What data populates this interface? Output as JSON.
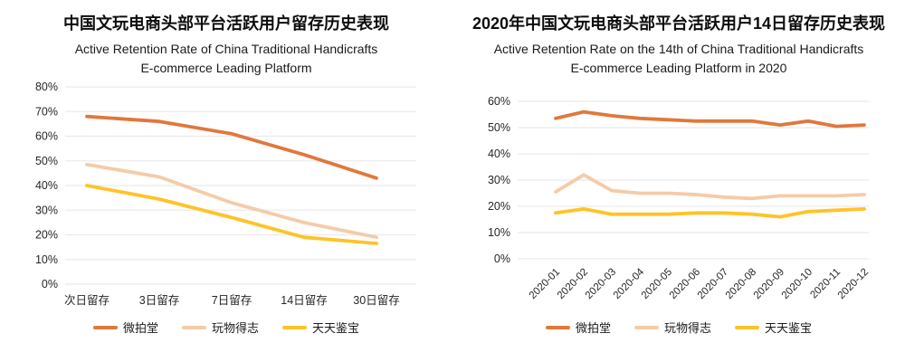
{
  "page": {
    "background": "#ffffff"
  },
  "colors": {
    "grid": "#ebebeb",
    "axis_text": "#262626",
    "title_text": "#0d0d0d",
    "series_orange": "#e0783c",
    "series_peach": "#f5cba8",
    "series_yellow": "#ffc328"
  },
  "chart_data": [
    {
      "type": "line",
      "title": "中国文玩电商头部平台活跃用户留存历史表现",
      "subtitle_lines": [
        "Active Retention Rate of China Traditional Handicrafts",
        "E-commerce Leading Platform"
      ],
      "categories": [
        "次日留存",
        "3日留存",
        "7日留存",
        "14日留存",
        "30日留存"
      ],
      "series": [
        {
          "name": "微拍堂",
          "color": "#e0783c",
          "values": [
            68,
            66,
            61,
            52.5,
            43
          ]
        },
        {
          "name": "玩物得志",
          "color": "#f5cba8",
          "values": [
            48.5,
            43.5,
            33,
            25,
            19
          ]
        },
        {
          "name": "天天鉴宝",
          "color": "#ffc328",
          "values": [
            40,
            34.5,
            27,
            19,
            16.5
          ]
        }
      ],
      "y_axis": {
        "min": 0,
        "max": 80,
        "step": 10,
        "format": "percent",
        "tick_labels": [
          "0%",
          "10%",
          "20%",
          "30%",
          "40%",
          "50%",
          "60%",
          "70%",
          "80%"
        ]
      },
      "x_axis": {
        "rotate_labels": false
      },
      "grid": true,
      "legend_position": "bottom"
    },
    {
      "type": "line",
      "title": "2020年中国文玩电商头部平台活跃用户14日留存历史表现",
      "subtitle_lines": [
        "Active Retention Rate on the 14th of China Traditional Handicrafts",
        "E-commerce Leading Platform in 2020"
      ],
      "categories": [
        "2020-01",
        "2020-02",
        "2020-03",
        "2020-04",
        "2020-05",
        "2020-06",
        "2020-07",
        "2020-08",
        "2020-09",
        "2020-10",
        "2020-11",
        "2020-12"
      ],
      "series": [
        {
          "name": "微拍堂",
          "color": "#e0783c",
          "values": [
            53.5,
            56,
            54.5,
            53.5,
            53,
            52.5,
            52.5,
            52.5,
            51,
            52.5,
            50.5,
            51
          ]
        },
        {
          "name": "玩物得志",
          "color": "#f5cba8",
          "values": [
            25.5,
            32,
            26,
            25,
            25,
            24.5,
            23.5,
            23,
            24,
            24,
            24,
            24.5
          ]
        },
        {
          "name": "天天鉴宝",
          "color": "#ffc328",
          "values": [
            17.5,
            19,
            17,
            17,
            17,
            17.5,
            17.5,
            17,
            16,
            18,
            18.5,
            19
          ]
        }
      ],
      "y_axis": {
        "min": 0,
        "max": 60,
        "step": 10,
        "format": "percent",
        "tick_labels": [
          "0%",
          "10%",
          "20%",
          "30%",
          "40%",
          "50%",
          "60%"
        ]
      },
      "x_axis": {
        "rotate_labels": true
      },
      "grid": true,
      "legend_position": "bottom"
    }
  ]
}
